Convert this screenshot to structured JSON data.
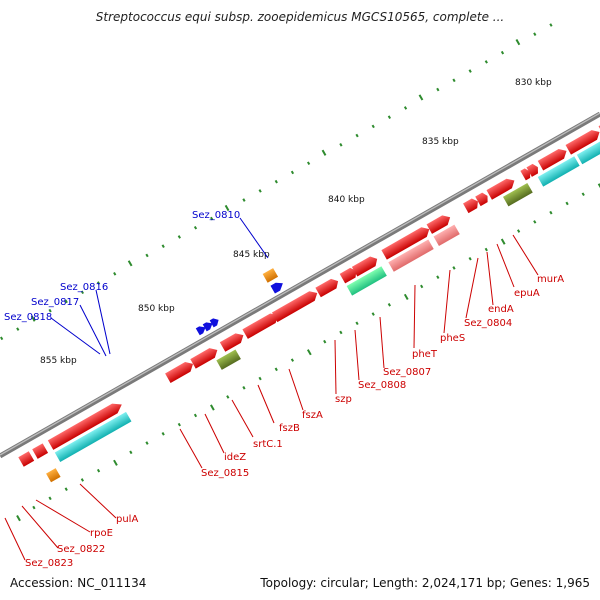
{
  "title": "Streptococcus equi subsp. zooepidemicus MGCS10565, complete ...",
  "accession": "Accession: NC_011134",
  "topology": "Topology: circular; Length: 2,024,171 bp; Genes: 1,965",
  "ticks": [
    "830 kbp",
    "835 kbp",
    "840 kbp",
    "845 kbp",
    "850 kbp",
    "855 kbp"
  ],
  "genes_top": [
    "Sez_0810",
    "Sez_0816",
    "Sez_0817",
    "Sez_0818"
  ],
  "genes_bottom": [
    "murA",
    "epuA",
    "endA",
    "Sez_0804",
    "pheS",
    "pheT",
    "Sez_0807",
    "Sez_0808",
    "szp",
    "fszA",
    "fszB",
    "srtC.1",
    "ideZ",
    "Sez_0815",
    "pulA",
    "rpoE",
    "Sez_0822",
    "Sez_0823"
  ],
  "colors": {
    "backbone": "#7a7a7a",
    "gene_red": "#ee1111",
    "gene_pink": "#f08080",
    "gene_cyan": "#22cccc",
    "gene_olive": "#6b8e23",
    "gene_orange": "#f08000",
    "gene_blue": "#1010dd",
    "tick_green": "#2e8b2e",
    "label_red": "#cc0000",
    "label_blue": "#0000cc"
  }
}
